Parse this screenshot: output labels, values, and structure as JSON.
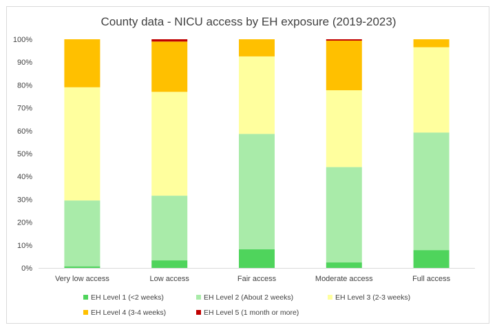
{
  "chart_data": {
    "type": "bar",
    "stacked": true,
    "percent_stacked": true,
    "title": "County data - NICU access by EH exposure (2019-2023)",
    "xlabel": "",
    "ylabel": "",
    "ylim": [
      0,
      100
    ],
    "y_ticks": [
      "0%",
      "10%",
      "20%",
      "30%",
      "40%",
      "50%",
      "60%",
      "70%",
      "80%",
      "90%",
      "100%"
    ],
    "categories": [
      "Very low access",
      "Low access",
      "Fair access",
      "Moderate access",
      "Full access"
    ],
    "series": [
      {
        "name": "EH Level 1 (<2 weeks)",
        "color": "#4fd45c",
        "values": [
          0.7,
          3.3,
          8.2,
          2.4,
          7.8
        ]
      },
      {
        "name": "EH Level 2 (About 2 weeks)",
        "color": "#a9eba9",
        "values": [
          28.8,
          28.3,
          50.4,
          41.7,
          51.4
        ]
      },
      {
        "name": "EH Level 3 (2-3 weeks)",
        "color": "#ffff9e",
        "values": [
          49.5,
          45.4,
          33.9,
          33.6,
          37.3
        ]
      },
      {
        "name": "EH Level 4 (3-4 weeks)",
        "color": "#ffc000",
        "values": [
          21.0,
          22.0,
          7.5,
          21.7,
          3.5
        ]
      },
      {
        "name": "EH Level 5 (1 month or more)",
        "color": "#c00000",
        "values": [
          0.0,
          1.0,
          0.0,
          0.6,
          0.0
        ]
      }
    ],
    "grid": false,
    "legend_position": "bottom"
  }
}
